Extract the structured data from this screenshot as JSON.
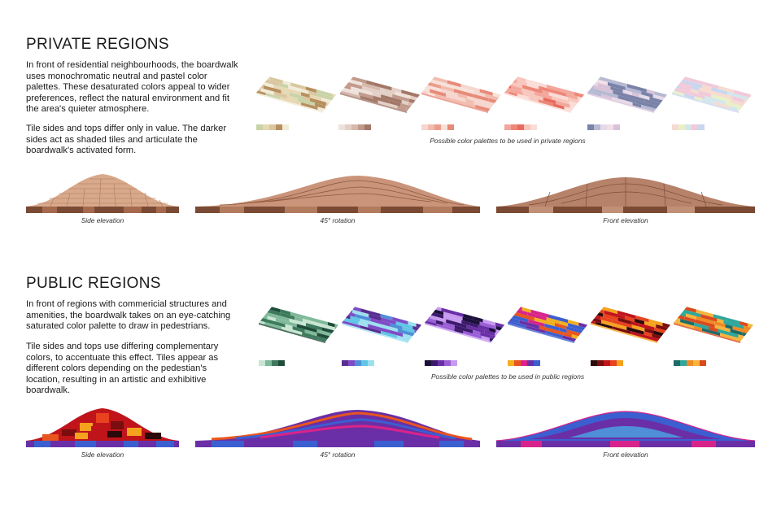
{
  "private": {
    "title": "PRIVATE REGIONS",
    "para1": "In front of residential neighbourhoods, the boardwalk uses monochromatic neutral and pastel color palettes. These desaturated colors appeal to wider preferences, reflect the natural environment and fit the area's quieter atmosphere.",
    "para2": "Tile sides and tops differ only in value. The darker sides act as shaded tiles and articulate the boardwalk's activated form.",
    "palette_caption": "Possible color palettes to be used in private regions",
    "elevation_captions": [
      "Side elevation",
      "45° rotation",
      "Front elevation"
    ],
    "palettes": [
      [
        "#c9d3a8",
        "#e6d8b3",
        "#d9c7a0",
        "#b88f5e",
        "#f1ebd8"
      ],
      [
        "#efe2dc",
        "#e4cfc6",
        "#d6b9ad",
        "#c19a8b",
        "#a27868"
      ],
      [
        "#f6d6cf",
        "#f1bcae",
        "#ec9d8d",
        "#f7e1d9",
        "#e88a78"
      ],
      [
        "#f3a79c",
        "#ee8778",
        "#e86a5e",
        "#f8c6bc",
        "#fbdcd6"
      ],
      [
        "#7a82a8",
        "#b6b9d2",
        "#e6d9e8",
        "#f3dfe7",
        "#d8c2d8"
      ],
      [
        "#f5dbd0",
        "#e9f0c9",
        "#d3e6ec",
        "#f1c9d9",
        "#c9d6ef"
      ]
    ]
  },
  "public": {
    "title": "PUBLIC REGIONS",
    "para1": "In front of regions with commericial structures and amenities, the boardwalk takes on an eye-catching saturated color palette to draw in pedestrians.",
    "para2": "Tile sides and tops use differing complementary colors, to accentuate this effect. Tiles appear as different colors depending on the pedestian's location, resulting in an artistic and exhibitive boardwalk.",
    "palette_caption": "Possible color palettes to be used in public regions",
    "elevation_captions": [
      "Side elevation",
      "45° rotation",
      "Front elevation"
    ],
    "palettes": [
      [
        "#c9e6d3",
        "#7fb99a",
        "#3d7a5c",
        "#1f4d3a"
      ],
      [
        "#5a2e91",
        "#7f4bc7",
        "#4f8fd8",
        "#5fc6e6",
        "#9de0ef"
      ],
      [
        "#1c0f3a",
        "#3b1a6b",
        "#6a2fa6",
        "#9a5fd6",
        "#c79af0"
      ],
      [
        "#f2b01e",
        "#e8551e",
        "#d8248a",
        "#6a2fa6",
        "#3b5fd0"
      ],
      [
        "#2b0a0a",
        "#7a0d0d",
        "#c0141b",
        "#e8421e",
        "#f5a21e"
      ],
      [
        "#1e6a66",
        "#2ea79c",
        "#f08a24",
        "#f5b53b",
        "#d94a1e"
      ]
    ]
  }
}
